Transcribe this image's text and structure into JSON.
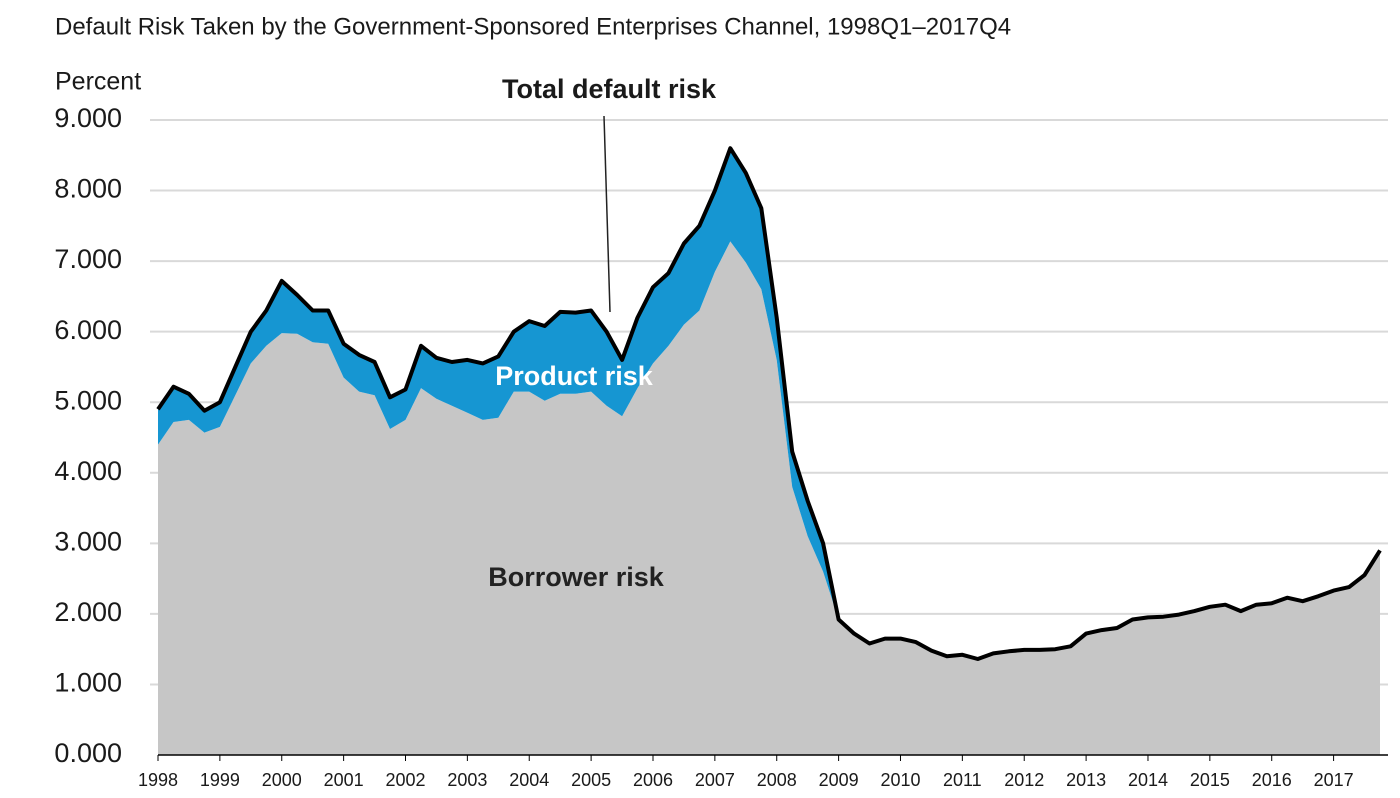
{
  "chart_data": {
    "type": "area",
    "stacked": true,
    "title": "Default Risk Taken by the Government-Sponsored Enterprises Channel, 1998Q1–2017Q4",
    "y_label": "Percent",
    "annotation": "Total default risk",
    "outline_color": "#000000",
    "grid": true,
    "xlim": [
      1998,
      2017.75
    ],
    "xticks": [
      1998,
      1999,
      2000,
      2001,
      2002,
      2003,
      2004,
      2005,
      2006,
      2007,
      2008,
      2009,
      2010,
      2011,
      2012,
      2013,
      2014,
      2015,
      2016,
      2017
    ],
    "ylim": [
      0,
      9
    ],
    "yticks": [
      {
        "value": 0,
        "label": "0.000"
      },
      {
        "value": 1,
        "label": "1.000"
      },
      {
        "value": 2,
        "label": "2.000"
      },
      {
        "value": 3,
        "label": "3.000"
      },
      {
        "value": 4,
        "label": "4.000"
      },
      {
        "value": 5,
        "label": "5.000"
      },
      {
        "value": 6,
        "label": "6.000"
      },
      {
        "value": 7,
        "label": "7.000"
      },
      {
        "value": 8,
        "label": "8.000"
      },
      {
        "value": 9,
        "label": "9.000"
      }
    ],
    "x": [
      1998,
      1998.25,
      1998.5,
      1998.75,
      1999,
      1999.25,
      1999.5,
      1999.75,
      2000,
      2000.25,
      2000.5,
      2000.75,
      2001,
      2001.25,
      2001.5,
      2001.75,
      2002,
      2002.25,
      2002.5,
      2002.75,
      2003,
      2003.25,
      2003.5,
      2003.75,
      2004,
      2004.25,
      2004.5,
      2004.75,
      2005,
      2005.25,
      2005.5,
      2005.75,
      2006,
      2006.25,
      2006.5,
      2006.75,
      2007,
      2007.25,
      2007.5,
      2007.75,
      2008,
      2008.25,
      2008.5,
      2008.75,
      2009,
      2009.25,
      2009.5,
      2009.75,
      2010,
      2010.25,
      2010.5,
      2010.75,
      2011,
      2011.25,
      2011.5,
      2011.75,
      2012,
      2012.25,
      2012.5,
      2012.75,
      2013,
      2013.25,
      2013.5,
      2013.75,
      2014,
      2014.25,
      2014.5,
      2014.75,
      2015,
      2015.25,
      2015.5,
      2015.75,
      2016,
      2016.25,
      2016.5,
      2016.75,
      2017,
      2017.25,
      2017.5,
      2017.75
    ],
    "series": [
      {
        "name": "Borrower risk",
        "color": "#c6c6c6",
        "label_color": "#222222",
        "values": [
          4.4,
          4.72,
          4.75,
          4.57,
          4.65,
          5.1,
          5.55,
          5.8,
          5.98,
          5.97,
          5.85,
          5.83,
          5.35,
          5.15,
          5.1,
          4.62,
          4.75,
          5.2,
          5.05,
          4.95,
          4.85,
          4.75,
          4.78,
          5.15,
          5.15,
          5.02,
          5.12,
          5.12,
          5.15,
          4.95,
          4.8,
          5.2,
          5.55,
          5.8,
          6.1,
          6.3,
          6.85,
          7.28,
          6.98,
          6.6,
          5.6,
          3.8,
          3.1,
          2.6,
          1.92,
          1.72,
          1.58,
          1.65,
          1.65,
          1.6,
          1.48,
          1.4,
          1.42,
          1.36,
          1.44,
          1.47,
          1.49,
          1.49,
          1.5,
          1.54,
          1.72,
          1.77,
          1.8,
          1.92,
          1.95,
          1.96,
          1.99,
          2.04,
          2.1,
          2.13,
          2.04,
          2.13,
          2.15,
          2.23,
          2.18,
          2.25,
          2.33,
          2.38,
          2.55,
          2.9
        ]
      },
      {
        "name": "Product risk",
        "color": "#1696d2",
        "label_color": "#ffffff",
        "values": [
          0.5,
          0.5,
          0.37,
          0.31,
          0.35,
          0.4,
          0.45,
          0.5,
          0.74,
          0.55,
          0.45,
          0.47,
          0.48,
          0.52,
          0.47,
          0.45,
          0.43,
          0.6,
          0.58,
          0.62,
          0.75,
          0.8,
          0.87,
          0.85,
          1.0,
          1.06,
          1.16,
          1.15,
          1.15,
          1.05,
          0.8,
          1.0,
          1.08,
          1.03,
          1.15,
          1.2,
          1.15,
          1.32,
          1.27,
          1.15,
          0.6,
          0.5,
          0.5,
          0.4,
          0,
          0,
          0,
          0,
          0,
          0,
          0,
          0,
          0,
          0,
          0,
          0,
          0,
          0,
          0,
          0,
          0,
          0,
          0,
          0,
          0,
          0,
          0,
          0,
          0,
          0,
          0,
          0,
          0,
          0,
          0,
          0,
          0,
          0,
          0,
          0
        ]
      }
    ]
  }
}
